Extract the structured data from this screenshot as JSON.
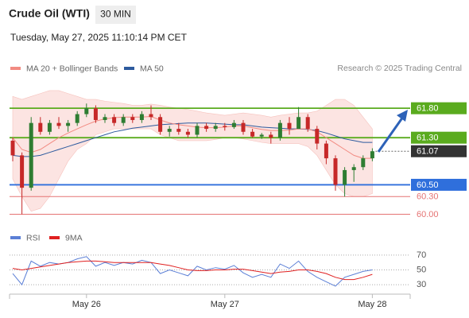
{
  "header": {
    "title": "Crude Oil (WTI)",
    "timeframe": "30 MIN",
    "datetime": "Tuesday, May 27, 2025 11:10:14 PM CET"
  },
  "credit": "Research © 2025 Trading Central",
  "chart_data": [
    {
      "type": "candlestick",
      "legend": [
        {
          "name": "MA 20 + Bollinger Bands",
          "color": "#f28b82"
        },
        {
          "name": "MA 50",
          "color": "#2d5a9e"
        }
      ],
      "categories": [
        null,
        null,
        null,
        null,
        null,
        null,
        null,
        null,
        "May 26",
        null,
        null,
        null,
        null,
        null,
        null,
        null,
        null,
        null,
        null,
        null,
        null,
        null,
        null,
        "May 27",
        null,
        null,
        null,
        null,
        null,
        null,
        null,
        null,
        null,
        null,
        null,
        null,
        null,
        null,
        null,
        "May 28"
      ],
      "ylim": [
        59.75,
        62.45
      ],
      "up_color": "#2e7d32",
      "down_color": "#c62828",
      "open": [
        61.25,
        61.0,
        60.45,
        61.55,
        61.4,
        61.55,
        61.5,
        61.55,
        61.7,
        61.8,
        61.6,
        61.65,
        61.55,
        61.65,
        61.6,
        61.7,
        61.65,
        61.4,
        61.45,
        61.4,
        61.35,
        61.5,
        61.45,
        61.5,
        61.48,
        61.55,
        61.4,
        61.32,
        61.35,
        61.3,
        61.55,
        61.45,
        61.65,
        61.45,
        61.2,
        60.95,
        60.5,
        60.75,
        60.8,
        60.95
      ],
      "high": [
        61.3,
        61.05,
        61.65,
        61.65,
        61.6,
        61.65,
        61.6,
        61.75,
        61.88,
        61.85,
        61.7,
        61.7,
        61.7,
        61.7,
        61.75,
        61.85,
        61.7,
        61.5,
        61.55,
        61.45,
        61.55,
        61.55,
        61.55,
        61.55,
        61.6,
        61.6,
        61.45,
        61.38,
        61.4,
        61.6,
        61.65,
        61.82,
        61.7,
        61.5,
        61.25,
        61.0,
        60.8,
        60.85,
        61.0,
        61.12
      ],
      "low": [
        60.9,
        60.0,
        60.4,
        61.35,
        61.35,
        61.45,
        61.4,
        61.5,
        61.65,
        61.55,
        61.55,
        61.5,
        61.5,
        61.55,
        61.55,
        61.6,
        61.35,
        61.32,
        61.35,
        61.3,
        61.3,
        61.4,
        61.4,
        61.42,
        61.45,
        61.35,
        61.3,
        61.28,
        61.2,
        61.25,
        61.35,
        61.45,
        61.4,
        61.1,
        60.85,
        60.4,
        60.3,
        60.55,
        60.75,
        60.9
      ],
      "close": [
        61.0,
        60.45,
        61.55,
        61.4,
        61.55,
        61.5,
        61.55,
        61.7,
        61.8,
        61.6,
        61.65,
        61.55,
        61.65,
        61.6,
        61.7,
        61.65,
        61.4,
        61.45,
        61.4,
        61.35,
        61.5,
        61.45,
        61.5,
        61.48,
        61.55,
        61.4,
        61.32,
        61.35,
        61.3,
        61.55,
        61.45,
        61.65,
        61.45,
        61.2,
        60.95,
        60.5,
        60.75,
        60.8,
        60.95,
        61.07
      ],
      "bb_upper": [
        62.0,
        61.95,
        62.0,
        62.05,
        62.1,
        62.1,
        62.05,
        62.0,
        61.95,
        61.95,
        61.92,
        61.9,
        61.88,
        61.85,
        61.85,
        61.87,
        61.85,
        61.82,
        61.8,
        61.78,
        61.75,
        61.72,
        61.7,
        61.68,
        61.7,
        61.72,
        61.7,
        61.68,
        61.65,
        61.68,
        61.7,
        61.72,
        61.72,
        61.75,
        61.85,
        61.95,
        61.95,
        61.85,
        61.65,
        61.45
      ],
      "bb_lower": [
        60.6,
        60.3,
        60.05,
        60.1,
        60.3,
        60.6,
        60.9,
        61.1,
        61.2,
        61.35,
        61.4,
        61.45,
        61.45,
        61.45,
        61.45,
        61.45,
        61.35,
        61.3,
        61.25,
        61.25,
        61.25,
        61.25,
        61.27,
        61.3,
        61.3,
        61.28,
        61.25,
        61.22,
        61.2,
        61.2,
        61.2,
        61.2,
        61.15,
        61.0,
        60.75,
        60.5,
        60.35,
        60.3,
        60.3,
        60.35
      ],
      "ma20": [
        61.3,
        61.1,
        61.05,
        61.1,
        61.2,
        61.3,
        61.38,
        61.45,
        61.52,
        61.58,
        61.62,
        61.64,
        61.65,
        61.65,
        61.65,
        61.66,
        61.6,
        61.55,
        61.52,
        61.5,
        61.48,
        61.47,
        61.47,
        61.48,
        61.5,
        61.5,
        61.47,
        61.44,
        61.42,
        61.42,
        61.43,
        61.45,
        61.45,
        61.4,
        61.3,
        61.2,
        61.1,
        61.0,
        60.95,
        60.95
      ],
      "ma50": [
        61.0,
        60.98,
        60.98,
        61.0,
        61.05,
        61.1,
        61.15,
        61.2,
        61.25,
        61.3,
        61.35,
        61.4,
        61.43,
        61.46,
        61.48,
        61.5,
        61.52,
        61.53,
        61.54,
        61.55,
        61.55,
        61.55,
        61.54,
        61.53,
        61.52,
        61.52,
        61.5,
        61.48,
        61.47,
        61.46,
        61.45,
        61.45,
        61.44,
        61.42,
        61.38,
        61.33,
        61.28,
        61.25,
        61.22,
        61.22
      ],
      "levels": [
        {
          "value": 61.8,
          "label": "61.80",
          "color": "#5aab1e",
          "boxed": true
        },
        {
          "value": 61.3,
          "label": "61.30",
          "color": "#5aab1e",
          "boxed": true
        },
        {
          "value": 60.5,
          "label": "60.50",
          "color": "#2f6fdc",
          "boxed": true
        },
        {
          "value": 60.3,
          "label": "60.30",
          "color": "#e57373",
          "boxed": false
        },
        {
          "value": 60.0,
          "label": "60.00",
          "color": "#e57373",
          "boxed": false
        }
      ],
      "current": {
        "value": 61.07,
        "label": "61.07",
        "color": "#333333"
      }
    },
    {
      "type": "line",
      "series": [
        {
          "name": "RSI",
          "color": "#5b7fd6",
          "values": [
            45,
            30,
            62,
            55,
            60,
            58,
            60,
            65,
            68,
            55,
            60,
            56,
            60,
            58,
            63,
            60,
            45,
            50,
            46,
            42,
            55,
            50,
            53,
            51,
            56,
            46,
            40,
            44,
            40,
            58,
            52,
            62,
            48,
            40,
            34,
            28,
            40,
            44,
            48,
            50
          ]
        },
        {
          "name": "9MA",
          "color": "#e02020",
          "values": [
            52,
            50,
            52,
            54,
            56,
            58,
            60,
            61,
            62,
            62,
            61,
            60,
            60,
            60,
            60,
            60,
            58,
            56,
            53,
            50,
            49,
            49,
            50,
            50,
            51,
            51,
            49,
            47,
            45,
            47,
            48,
            50,
            50,
            48,
            45,
            40,
            37,
            37,
            40,
            44
          ]
        }
      ],
      "ylim": [
        15,
        85
      ],
      "yticks": [
        70,
        50,
        30
      ]
    }
  ]
}
